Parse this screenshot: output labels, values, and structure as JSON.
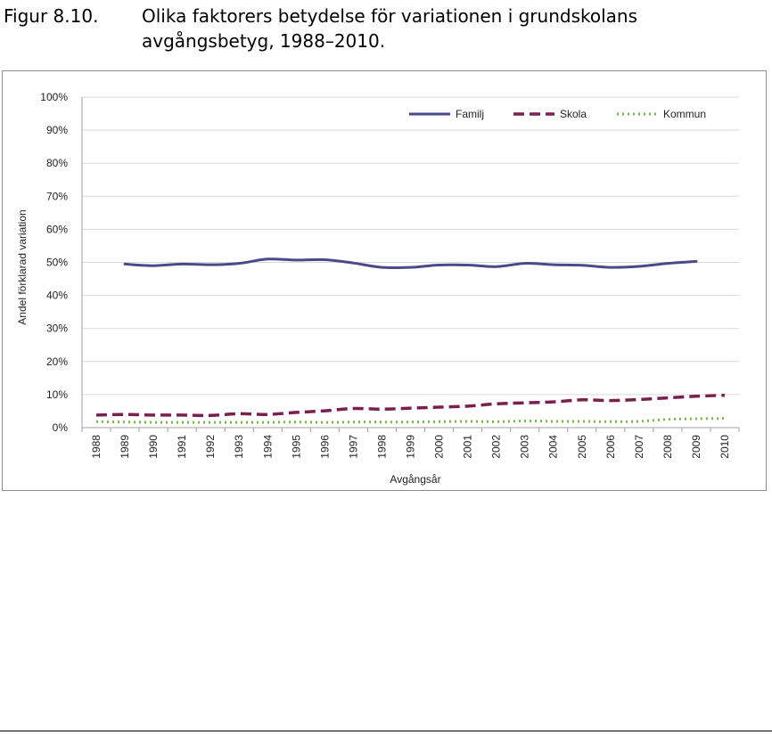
{
  "figure": {
    "number": "Figur 8.10.",
    "title": "Olika faktorers betydelse för variationen i grundskolans avgångsbetyg, 1988–2010."
  },
  "colors": {
    "familj": "#4a4a8a",
    "skola": "#7a1f4f",
    "kommun": "#7ab648",
    "grid": "#d9d9d9",
    "axis": "#a0a0a0"
  },
  "chart_data": {
    "type": "line",
    "title": "",
    "xlabel": "Avgångsår",
    "ylabel": "Andel förklarad variation",
    "ylim": [
      0,
      100
    ],
    "yticks": [
      "0%",
      "10%",
      "20%",
      "30%",
      "40%",
      "50%",
      "60%",
      "70%",
      "80%",
      "90%",
      "100%"
    ],
    "categories": [
      "1988",
      "1989",
      "1990",
      "1991",
      "1992",
      "1993",
      "1994",
      "1995",
      "1996",
      "1997",
      "1998",
      "1999",
      "2000",
      "2001",
      "2002",
      "2003",
      "2004",
      "2005",
      "2006",
      "2007",
      "2008",
      "2009",
      "2010"
    ],
    "grid": true,
    "legend_position": "top-right",
    "series": [
      {
        "name": "Familj",
        "style": "solid",
        "values": [
          null,
          49.5,
          49,
          49.5,
          49.3,
          49.7,
          51,
          50.7,
          50.8,
          49.8,
          48.5,
          48.5,
          49.2,
          49.2,
          48.7,
          49.7,
          49.3,
          49.1,
          48.5,
          48.8,
          49.7,
          50.3,
          null
        ]
      },
      {
        "name": "Skola",
        "style": "dashed",
        "values": [
          3.8,
          4.0,
          3.8,
          3.8,
          3.7,
          4.2,
          4.0,
          4.6,
          5.1,
          5.8,
          5.6,
          5.9,
          6.2,
          6.5,
          7.2,
          7.5,
          7.8,
          8.4,
          8.2,
          8.5,
          9.0,
          9.5,
          9.8
        ]
      },
      {
        "name": "Kommun",
        "style": "dotted",
        "values": [
          1.8,
          1.7,
          1.6,
          1.6,
          1.6,
          1.6,
          1.6,
          1.7,
          1.6,
          1.7,
          1.7,
          1.7,
          1.8,
          1.9,
          1.8,
          2.0,
          1.9,
          1.9,
          1.8,
          1.9,
          2.5,
          2.7,
          2.8
        ]
      }
    ]
  }
}
